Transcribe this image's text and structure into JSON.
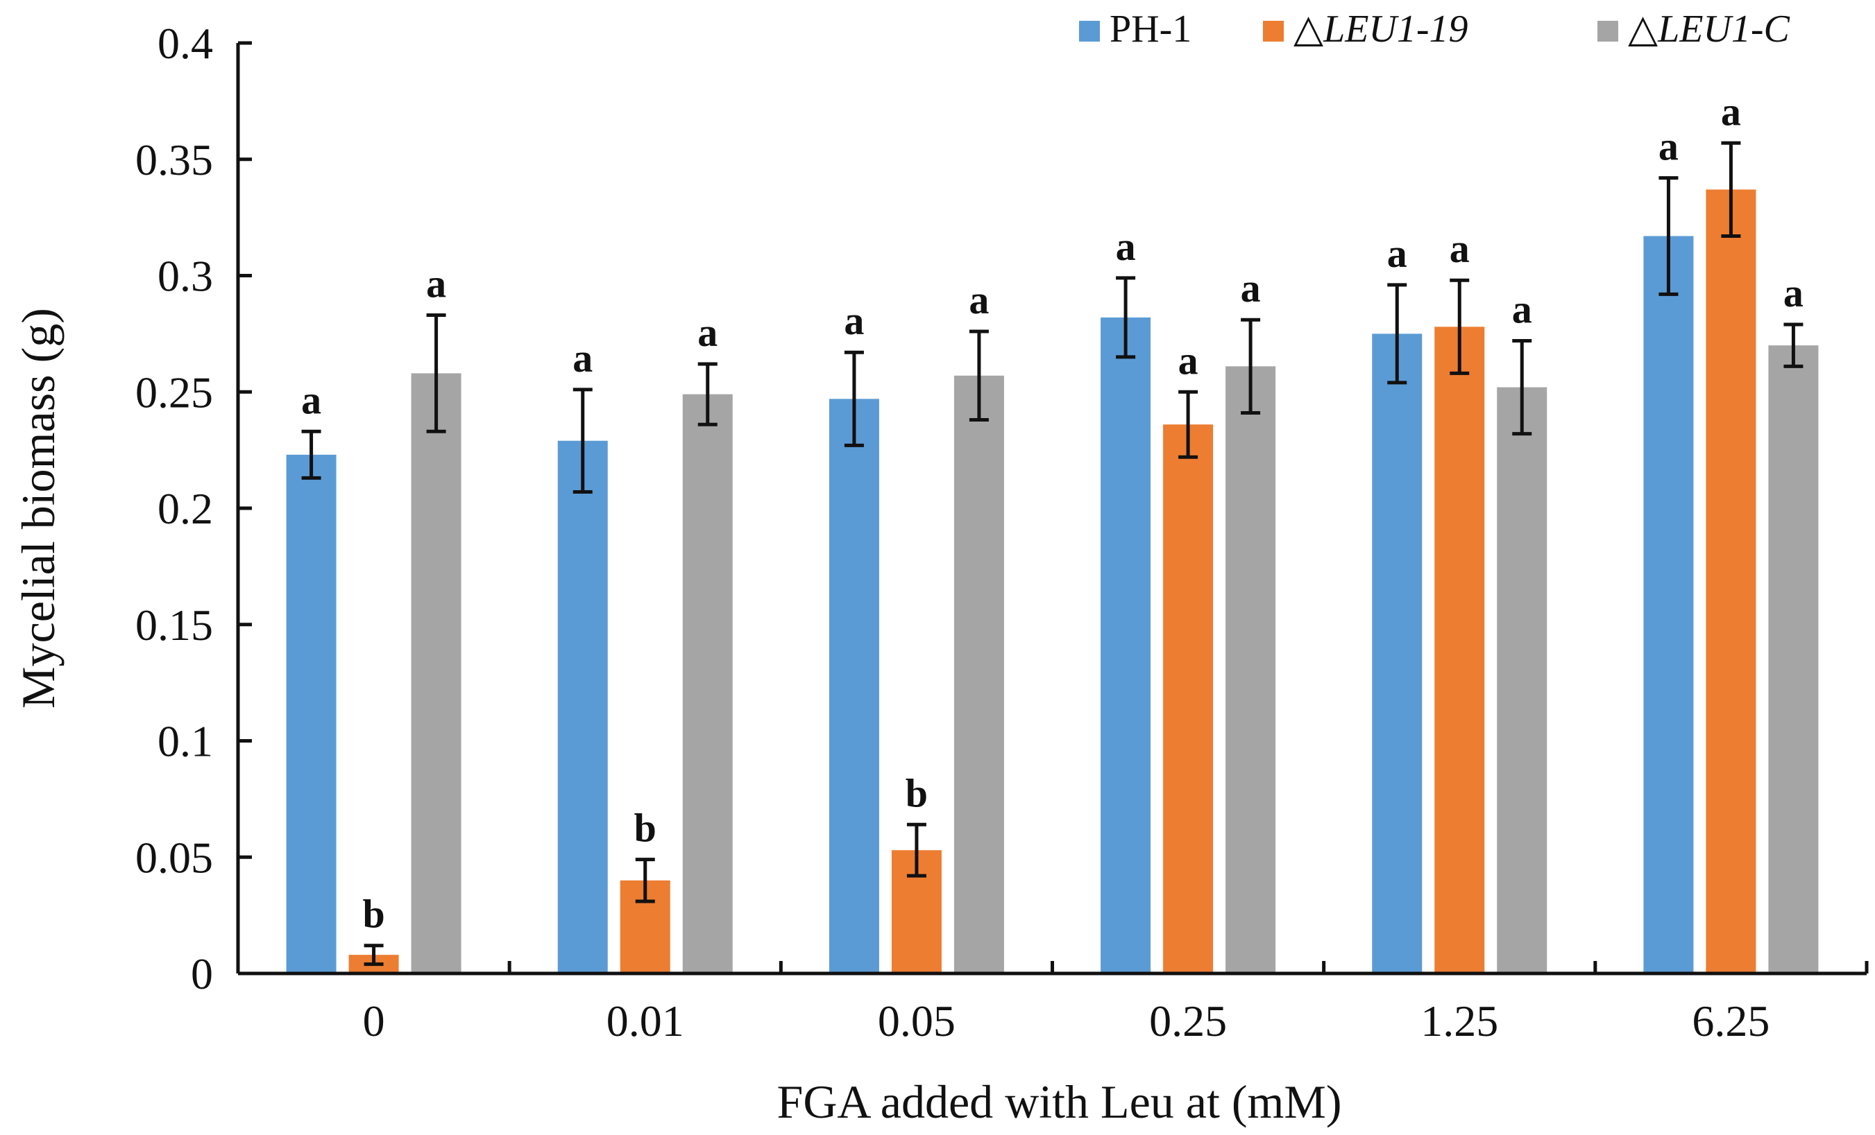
{
  "chart_data": {
    "type": "bar",
    "title": "",
    "xlabel": "FGA added with Leu at (mM)",
    "ylabel": "Mycelial biomass (g)",
    "ylim": [
      0,
      0.4
    ],
    "yticks": [
      "0",
      "0.05",
      "0.1",
      "0.15",
      "0.2",
      "0.25",
      "0.3",
      "0.35",
      "0.4"
    ],
    "categories": [
      "0",
      "0.01",
      "0.05",
      "0.25",
      "1.25",
      "6.25"
    ],
    "series": [
      {
        "name": "PH-1",
        "legend_prefix": "",
        "legend_main": "PH-1",
        "legend_italic": false,
        "color": "#5B9BD5",
        "values": [
          0.223,
          0.229,
          0.247,
          0.282,
          0.275,
          0.317
        ],
        "errors": [
          0.01,
          0.022,
          0.02,
          0.017,
          0.021,
          0.025
        ],
        "significance": [
          "a",
          "a",
          "a",
          "a",
          "a",
          "a"
        ]
      },
      {
        "name": "ΔLEU1-19",
        "legend_prefix": "△",
        "legend_main": "LEU1-19",
        "legend_italic": true,
        "color": "#ED7D31",
        "values": [
          0.008,
          0.04,
          0.053,
          0.236,
          0.278,
          0.337
        ],
        "errors": [
          0.004,
          0.009,
          0.011,
          0.014,
          0.02,
          0.02
        ],
        "significance": [
          "b",
          "b",
          "b",
          "a",
          "a",
          "a"
        ]
      },
      {
        "name": "ΔLEU1-C",
        "legend_prefix": "△",
        "legend_main": "LEU1-C",
        "legend_italic": true,
        "color": "#A5A5A5",
        "values": [
          0.258,
          0.249,
          0.257,
          0.261,
          0.252,
          0.27
        ],
        "errors": [
          0.025,
          0.013,
          0.019,
          0.02,
          0.02,
          0.009
        ],
        "significance": [
          "a",
          "a",
          "a",
          "a",
          "a",
          "a"
        ]
      }
    ],
    "legend_position": "top-right",
    "grid": false
  }
}
